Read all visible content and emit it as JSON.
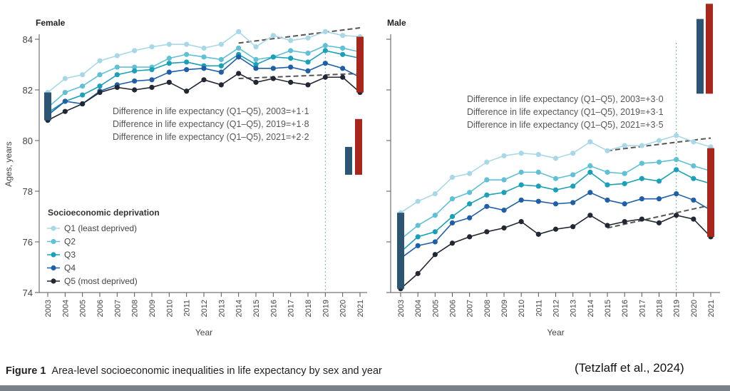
{
  "chart_data": [
    {
      "type": "line",
      "title": "Female",
      "xlabel": "Year",
      "ylabel": "Ages, years",
      "ylim": [
        74,
        84.5
      ],
      "yticks": [
        74,
        76,
        78,
        80,
        82,
        84
      ],
      "x": [
        2003,
        2004,
        2005,
        2006,
        2007,
        2008,
        2009,
        2010,
        2011,
        2012,
        2013,
        2014,
        2015,
        2016,
        2017,
        2018,
        2019,
        2020,
        2021
      ],
      "legend_title": "Socioeconomic deprivation",
      "legend_placement": "bottom-left",
      "series": [
        {
          "name": "Q1 (least deprived)",
          "color": "#a8d8e8",
          "values": [
            81.9,
            82.45,
            82.6,
            83.15,
            83.35,
            83.55,
            83.7,
            83.8,
            83.8,
            83.65,
            83.8,
            84.3,
            83.7,
            84.15,
            83.95,
            84.05,
            84.3,
            84.15,
            84.1
          ]
        },
        {
          "name": "Q2",
          "color": "#5fc0d6",
          "values": [
            81.3,
            81.9,
            82.15,
            82.6,
            82.9,
            82.9,
            82.9,
            83.25,
            83.4,
            83.3,
            83.2,
            83.65,
            83.2,
            83.3,
            83.55,
            83.45,
            83.75,
            83.65,
            83.5
          ]
        },
        {
          "name": "Q3",
          "color": "#1aa0b8",
          "values": [
            81.1,
            81.55,
            81.8,
            82.15,
            82.6,
            82.75,
            82.8,
            83.05,
            83.1,
            82.95,
            82.95,
            83.4,
            83.0,
            83.3,
            83.25,
            83.1,
            83.55,
            83.4,
            83.25
          ]
        },
        {
          "name": "Q4",
          "color": "#1f5fa8",
          "values": [
            81.0,
            81.55,
            81.45,
            81.95,
            82.2,
            82.35,
            82.4,
            82.7,
            82.8,
            82.85,
            82.7,
            83.3,
            82.85,
            82.85,
            82.9,
            82.75,
            83.05,
            82.85,
            82.5
          ]
        },
        {
          "name": "Q5 (most deprived)",
          "color": "#222833",
          "values": [
            80.8,
            81.15,
            81.45,
            81.9,
            82.1,
            82.0,
            82.1,
            82.3,
            81.95,
            82.4,
            82.2,
            82.65,
            82.3,
            82.45,
            82.3,
            82.2,
            82.5,
            82.5,
            81.9
          ]
        }
      ],
      "annotations": [
        "Difference in life expectancy (Q1–Q5), 2003=+1·1",
        "Difference in life expectancy (Q1–Q5), 2019=+1·8",
        "Difference in life expectancy (Q1–Q5), 2021=+2·2"
      ],
      "gap_bars": [
        {
          "year": 2003,
          "from": 80.8,
          "to": 81.9,
          "color": "#2c5573"
        },
        {
          "year": 2021,
          "from": 81.9,
          "to": 84.1,
          "color": "#a8261b"
        }
      ],
      "comparison_bars": [
        {
          "from": 78.65,
          "to": 79.75,
          "color": "#2c5573"
        },
        {
          "from": 78.65,
          "to": 80.85,
          "color": "#a8261b"
        }
      ],
      "reference_line_year": 2019,
      "trend_lines": [
        {
          "from": [
            2014,
            83.85
          ],
          "to": [
            2021,
            84.45
          ]
        },
        {
          "from": [
            2014,
            82.45
          ],
          "to": [
            2021,
            82.65
          ]
        }
      ]
    },
    {
      "type": "line",
      "title": "Male",
      "xlabel": "Year",
      "ylim": [
        74,
        84.5
      ],
      "x": [
        2003,
        2004,
        2005,
        2006,
        2007,
        2008,
        2009,
        2010,
        2011,
        2012,
        2013,
        2014,
        2015,
        2016,
        2017,
        2018,
        2019,
        2020,
        2021
      ],
      "series": [
        {
          "name": "Q1 (least deprived)",
          "color": "#a8d8e8",
          "values": [
            77.15,
            77.6,
            77.9,
            78.55,
            78.7,
            79.15,
            79.4,
            79.5,
            79.45,
            79.3,
            79.5,
            79.95,
            79.6,
            79.8,
            79.8,
            80.0,
            80.2,
            79.95,
            79.75
          ]
        },
        {
          "name": "Q2",
          "color": "#5fc0d6",
          "values": [
            76.1,
            76.65,
            77.05,
            77.7,
            77.95,
            78.45,
            78.45,
            78.75,
            78.75,
            78.5,
            78.65,
            79.0,
            78.75,
            78.7,
            79.1,
            79.15,
            79.25,
            79.0,
            78.8
          ]
        },
        {
          "name": "Q3",
          "color": "#1aa0b8",
          "values": [
            75.6,
            76.2,
            76.4,
            77.0,
            77.5,
            77.85,
            77.95,
            78.25,
            78.2,
            78.05,
            78.2,
            78.75,
            78.25,
            78.3,
            78.5,
            78.4,
            78.85,
            78.5,
            78.3
          ]
        },
        {
          "name": "Q4",
          "color": "#1f5fa8",
          "values": [
            75.35,
            75.85,
            76.0,
            76.75,
            76.95,
            77.4,
            77.25,
            77.65,
            77.6,
            77.5,
            77.55,
            77.95,
            77.65,
            77.5,
            77.7,
            77.7,
            77.9,
            77.65,
            77.25
          ]
        },
        {
          "name": "Q5 (most deprived)",
          "color": "#222833",
          "values": [
            74.15,
            74.75,
            75.5,
            75.95,
            76.2,
            76.4,
            76.55,
            76.8,
            76.3,
            76.5,
            76.6,
            77.05,
            76.65,
            76.8,
            76.9,
            76.75,
            77.05,
            76.9,
            76.2
          ]
        }
      ],
      "annotations": [
        "Difference in life expectancy (Q1–Q5), 2003=+3·0",
        "Difference in life expectancy (Q1–Q5), 2019=+3·1",
        "Difference in life expectancy (Q1–Q5), 2021=+3·5"
      ],
      "gap_bars": [
        {
          "year": 2003,
          "from": 74.15,
          "to": 77.15,
          "color": "#2c5573"
        },
        {
          "year": 2021,
          "from": 76.2,
          "to": 79.7,
          "color": "#a8261b"
        }
      ],
      "comparison_bars": [
        {
          "from": 81.85,
          "to": 84.8,
          "color": "#2c5573"
        },
        {
          "from": 81.85,
          "to": 85.4,
          "color": "#a8261b"
        }
      ],
      "reference_line_year": 2019,
      "trend_lines": [
        {
          "from": [
            2015,
            79.6
          ],
          "to": [
            2021,
            80.1
          ]
        },
        {
          "from": [
            2015,
            76.55
          ],
          "to": [
            2021,
            77.45
          ]
        }
      ]
    }
  ],
  "caption": {
    "label": "Figure 1",
    "text": "Area-level socioeconomic inequalities in life expectancy by sex and year"
  },
  "citation": "(Tetzlaff et al., 2024)"
}
